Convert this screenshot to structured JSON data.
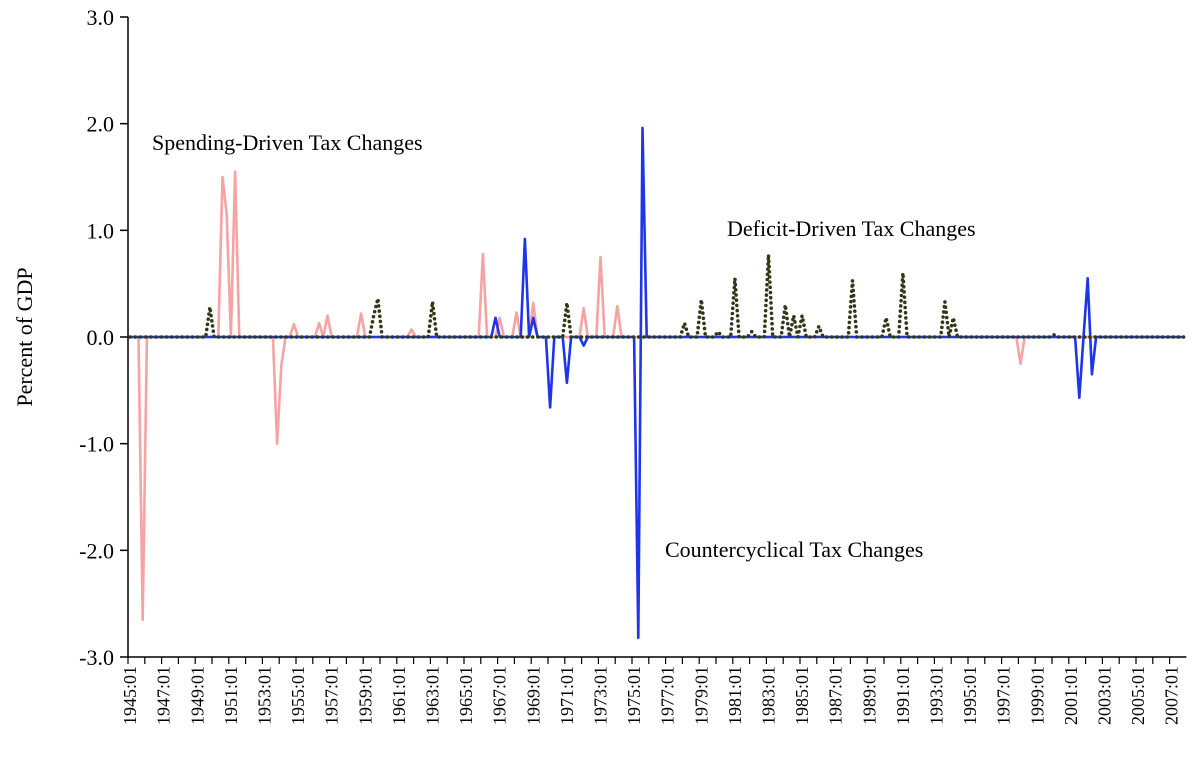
{
  "chart_data": {
    "type": "line",
    "y_label": "Percent of GDP",
    "ylim": [
      -3,
      3
    ],
    "yticks": [
      {
        "value": -3,
        "label": "-3.0"
      },
      {
        "value": -2,
        "label": "-2.0"
      },
      {
        "value": -1,
        "label": "-1.0"
      },
      {
        "value": 0,
        "label": "0.0"
      },
      {
        "value": 1,
        "label": "1.0"
      },
      {
        "value": 2,
        "label": "2.0"
      },
      {
        "value": 3,
        "label": "3.0"
      }
    ],
    "grid": false,
    "categories": [
      "1945:01",
      null,
      null,
      null,
      null,
      null,
      null,
      null,
      "1947:01",
      null,
      null,
      null,
      null,
      null,
      null,
      null,
      "1949:01",
      null,
      null,
      null,
      null,
      null,
      null,
      null,
      "1951:01",
      null,
      null,
      null,
      null,
      null,
      null,
      null,
      "1953:01",
      null,
      null,
      null,
      null,
      null,
      null,
      null,
      "1955:01",
      null,
      null,
      null,
      null,
      null,
      null,
      null,
      "1957:01",
      null,
      null,
      null,
      null,
      null,
      null,
      null,
      "1959:01",
      null,
      null,
      null,
      null,
      null,
      null,
      null,
      "1961:01",
      null,
      null,
      null,
      null,
      null,
      null,
      null,
      "1963:01",
      null,
      null,
      null,
      null,
      null,
      null,
      null,
      "1965:01",
      null,
      null,
      null,
      null,
      null,
      null,
      null,
      "1967:01",
      null,
      null,
      null,
      null,
      null,
      null,
      null,
      "1969:01",
      null,
      null,
      null,
      null,
      null,
      null,
      null,
      "1971:01",
      null,
      null,
      null,
      null,
      null,
      null,
      null,
      "1973:01",
      null,
      null,
      null,
      null,
      null,
      null,
      null,
      "1975:01",
      null,
      null,
      null,
      null,
      null,
      null,
      null,
      "1977:01",
      null,
      null,
      null,
      null,
      null,
      null,
      null,
      "1979:01",
      null,
      null,
      null,
      null,
      null,
      null,
      null,
      "1981:01",
      null,
      null,
      null,
      null,
      null,
      null,
      null,
      "1983:01",
      null,
      null,
      null,
      null,
      null,
      null,
      null,
      "1985:01",
      null,
      null,
      null,
      null,
      null,
      null,
      null,
      "1987:01",
      null,
      null,
      null,
      null,
      null,
      null,
      null,
      "1989:01",
      null,
      null,
      null,
      null,
      null,
      null,
      null,
      "1991:01",
      null,
      null,
      null,
      null,
      null,
      null,
      null,
      "1993:01",
      null,
      null,
      null,
      null,
      null,
      null,
      null,
      "1995:01",
      null,
      null,
      null,
      null,
      null,
      null,
      null,
      "1997:01",
      null,
      null,
      null,
      null,
      null,
      null,
      null,
      "1999:01",
      null,
      null,
      null,
      null,
      null,
      null,
      null,
      "2001:01",
      null,
      null,
      null,
      null,
      null,
      null,
      null,
      "2003:01",
      null,
      null,
      null,
      null,
      null,
      null,
      null,
      "2005:01",
      null,
      null,
      null,
      null,
      null,
      null,
      null,
      "2007:01",
      null,
      null,
      null
    ],
    "series": [
      {
        "name": "Spending-Driven Tax Changes",
        "color": "#f7a3a3",
        "style": "solid",
        "values": [
          0,
          0,
          0,
          -2.65,
          0,
          0,
          0,
          0,
          0,
          0,
          0,
          0,
          0,
          0,
          0,
          0,
          0,
          0,
          0,
          0,
          0,
          0,
          1.5,
          1.15,
          0,
          1.55,
          0,
          0,
          0,
          0,
          0,
          0,
          0,
          0,
          0,
          -1,
          -0.27,
          0,
          0,
          0.12,
          0,
          0,
          0,
          0,
          0,
          0.13,
          0,
          0.2,
          0,
          0,
          0,
          0,
          0,
          0,
          0,
          0.22,
          0,
          0,
          0,
          0,
          0,
          0,
          0,
          0,
          0,
          0,
          0,
          0.07,
          0,
          0,
          0,
          0,
          0,
          0,
          0,
          0,
          0,
          0,
          0,
          0,
          0,
          0,
          0,
          0,
          0.78,
          0,
          0,
          0,
          0.18,
          0,
          0,
          0,
          0.23,
          0,
          0,
          0,
          0.32,
          0,
          0,
          0,
          0,
          0,
          0,
          0,
          0,
          0,
          0,
          0,
          0.27,
          0,
          0,
          0,
          0.75,
          0,
          0,
          0,
          0.29,
          0,
          0,
          0,
          0,
          0,
          0,
          0,
          0,
          0,
          0,
          0,
          0,
          0,
          0,
          0,
          0,
          0,
          0,
          0,
          0,
          0,
          0,
          0,
          0,
          0,
          0,
          0,
          0,
          0,
          0,
          0,
          0,
          0,
          0,
          0,
          0,
          0,
          0,
          0,
          0,
          0,
          0,
          0,
          0,
          0,
          0,
          0,
          0,
          0,
          0,
          0,
          0,
          0,
          0,
          0,
          0,
          0,
          0,
          0,
          0,
          0,
          0,
          0,
          0,
          0,
          0,
          0,
          0,
          0,
          0,
          0,
          0,
          0,
          0,
          0,
          0,
          0,
          0,
          0,
          0,
          0,
          0,
          0,
          0,
          0,
          0,
          0,
          0,
          0,
          0,
          0,
          0,
          0,
          0,
          0,
          -0.25,
          0,
          0,
          0,
          0,
          0,
          0,
          0,
          0,
          0,
          0,
          0,
          0,
          0,
          0,
          0,
          0,
          0,
          0,
          0,
          0,
          0,
          0,
          0,
          0,
          0,
          0,
          0,
          0,
          0,
          0,
          0,
          0,
          0,
          0,
          0,
          0,
          0,
          0,
          0
        ]
      },
      {
        "name": "Countercyclical Tax Changes",
        "color": "#1f35e8",
        "style": "solid",
        "values": [
          0,
          0,
          0,
          0,
          0,
          0,
          0,
          0,
          0,
          0,
          0,
          0,
          0,
          0,
          0,
          0,
          0,
          0,
          0,
          0,
          0,
          0,
          0,
          0,
          0,
          0,
          0,
          0,
          0,
          0,
          0,
          0,
          0,
          0,
          0,
          0,
          0,
          0,
          0,
          0,
          0,
          0,
          0,
          0,
          0,
          0,
          0,
          0,
          0,
          0,
          0,
          0,
          0,
          0,
          0,
          0,
          0,
          0,
          0,
          0,
          0,
          0,
          0,
          0,
          0,
          0,
          0,
          0,
          0,
          0,
          0,
          0,
          0,
          0,
          0,
          0,
          0,
          0,
          0,
          0,
          0,
          0,
          0,
          0,
          0,
          0,
          0,
          0.18,
          0,
          0,
          0,
          0,
          0,
          0,
          0.92,
          0,
          0.18,
          0,
          0,
          0,
          -0.66,
          0,
          0,
          0,
          -0.43,
          0,
          0,
          0,
          -0.08,
          0,
          0,
          0,
          0,
          0,
          0,
          0,
          0,
          0,
          0,
          0,
          0,
          -2.82,
          1.96,
          0,
          0,
          0,
          0,
          0,
          0,
          0,
          0,
          0,
          0,
          0,
          0,
          0,
          0,
          0,
          0,
          0,
          0,
          0,
          0,
          0,
          0,
          0,
          0,
          0,
          0,
          0,
          0,
          0,
          0,
          0,
          0,
          0,
          0,
          0,
          0,
          0,
          0,
          0,
          0,
          0,
          0,
          0,
          0,
          0,
          0,
          0,
          0,
          0,
          0,
          0,
          0,
          0,
          0,
          0,
          0,
          0,
          0,
          0,
          0,
          0,
          0,
          0,
          0,
          0,
          0,
          0,
          0,
          0,
          0,
          0,
          0,
          0,
          0,
          0,
          0,
          0,
          0,
          0,
          0,
          0,
          0,
          0,
          0,
          0,
          0,
          0,
          0,
          0,
          0,
          0,
          0,
          0,
          0,
          0,
          0,
          0,
          0,
          0,
          0,
          0,
          0,
          0,
          -0.57,
          0,
          0.55,
          -0.35,
          0,
          0,
          0,
          0,
          0,
          0,
          0,
          0,
          0,
          0,
          0,
          0,
          0,
          0,
          0,
          0,
          0,
          0,
          0,
          0,
          0,
          0
        ]
      },
      {
        "name": "Deficit-Driven Tax Changes",
        "color": "#2e3a16",
        "style": "dotted",
        "values": [
          0,
          0,
          0,
          0,
          0,
          0,
          0,
          0,
          0,
          0,
          0,
          0,
          0,
          0,
          0,
          0,
          0,
          0,
          0,
          0.28,
          0,
          0,
          0,
          0,
          0,
          0,
          0,
          0,
          0,
          0,
          0,
          0,
          0,
          0,
          0,
          0,
          0,
          0,
          0,
          0,
          0,
          0,
          0,
          0,
          0,
          0,
          0,
          0,
          0,
          0,
          0,
          0,
          0,
          0,
          0,
          0,
          0,
          0,
          0.2,
          0.36,
          0,
          0,
          0,
          0,
          0,
          0,
          0,
          0,
          0,
          0,
          0,
          0,
          0.33,
          0,
          0,
          0,
          0,
          0,
          0,
          0,
          0,
          0,
          0,
          0,
          0,
          0,
          0,
          0,
          0,
          0,
          0,
          0,
          0,
          0,
          0,
          0,
          0,
          0,
          0,
          0,
          0,
          0,
          0,
          0,
          0.32,
          0,
          0,
          0,
          0,
          0,
          0,
          0,
          0,
          0,
          0,
          0,
          0,
          0,
          0,
          0,
          0,
          0,
          0,
          0,
          0,
          0,
          0,
          0,
          0,
          0,
          0,
          0,
          0.13,
          0,
          0,
          0,
          0.35,
          0,
          0,
          0,
          0.05,
          0,
          0,
          0,
          0.55,
          0,
          0,
          0,
          0.05,
          0,
          0,
          0,
          0.77,
          0,
          0,
          0,
          0.3,
          0,
          0.2,
          0,
          0.2,
          0,
          0,
          0,
          0.1,
          0,
          0,
          0,
          0,
          0,
          0,
          0,
          0.53,
          0,
          0,
          0,
          0,
          0,
          0,
          0,
          0.18,
          0,
          0,
          0,
          0.6,
          0,
          0,
          0,
          0,
          0,
          0,
          0,
          0,
          0,
          0.33,
          0,
          0.18,
          0,
          0,
          0,
          0,
          0,
          0,
          0,
          0,
          0,
          0,
          0,
          0,
          0,
          0,
          0,
          0,
          0,
          0,
          0,
          0,
          0,
          0,
          0,
          0.02,
          0,
          0,
          0,
          0,
          0,
          0,
          0,
          0,
          0,
          0,
          0,
          0,
          0,
          0,
          0,
          0,
          0,
          0,
          0,
          0,
          0,
          0,
          0,
          0,
          0,
          0,
          0,
          0,
          0,
          0,
          0
        ]
      }
    ]
  }
}
